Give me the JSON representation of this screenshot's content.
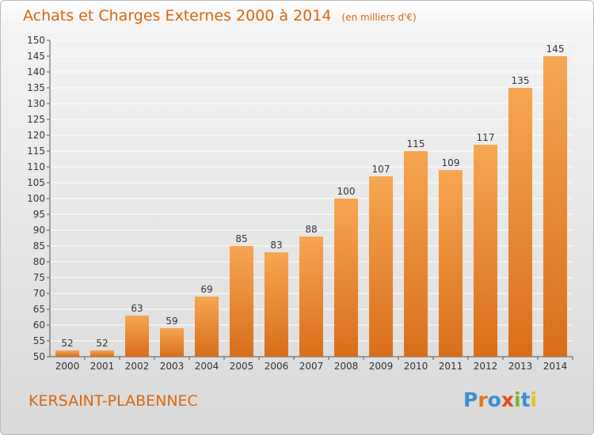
{
  "header": {
    "title": "Achats et Charges Externes 2000 à 2014",
    "subtitle": "(en milliers d'€)"
  },
  "place": "KERSAINT-PLABENNEC",
  "logo": {
    "text": "Proxiti",
    "letters": [
      {
        "ch": "P",
        "color": "#3a8fd6"
      },
      {
        "ch": "r",
        "color": "#e8731a"
      },
      {
        "ch": "o",
        "color": "#3a8fd6"
      },
      {
        "ch": "x",
        "color": "#e84a1a"
      },
      {
        "ch": "i",
        "color": "#7ab52e"
      },
      {
        "ch": "t",
        "color": "#3a8fd6"
      },
      {
        "ch": "i",
        "color": "#e8c21a"
      }
    ]
  },
  "colors": {
    "accent": "#d9660f",
    "bar_light": "#f7a651",
    "bar_dark": "#d96e1a",
    "axis": "#555555",
    "grid": "#ffffff"
  },
  "chart_data": {
    "type": "bar",
    "categories": [
      "2000",
      "2001",
      "2002",
      "2003",
      "2004",
      "2005",
      "2006",
      "2007",
      "2008",
      "2009",
      "2010",
      "2011",
      "2012",
      "2013",
      "2014"
    ],
    "values": [
      52,
      52,
      63,
      59,
      69,
      85,
      83,
      88,
      100,
      107,
      115,
      109,
      117,
      135,
      145
    ],
    "title": "Achats et Charges Externes 2000 à 2014",
    "subtitle": "(en milliers d'€)",
    "ylim": [
      50,
      150
    ],
    "ytick_step": 5,
    "grid": true,
    "data_labels": true
  }
}
